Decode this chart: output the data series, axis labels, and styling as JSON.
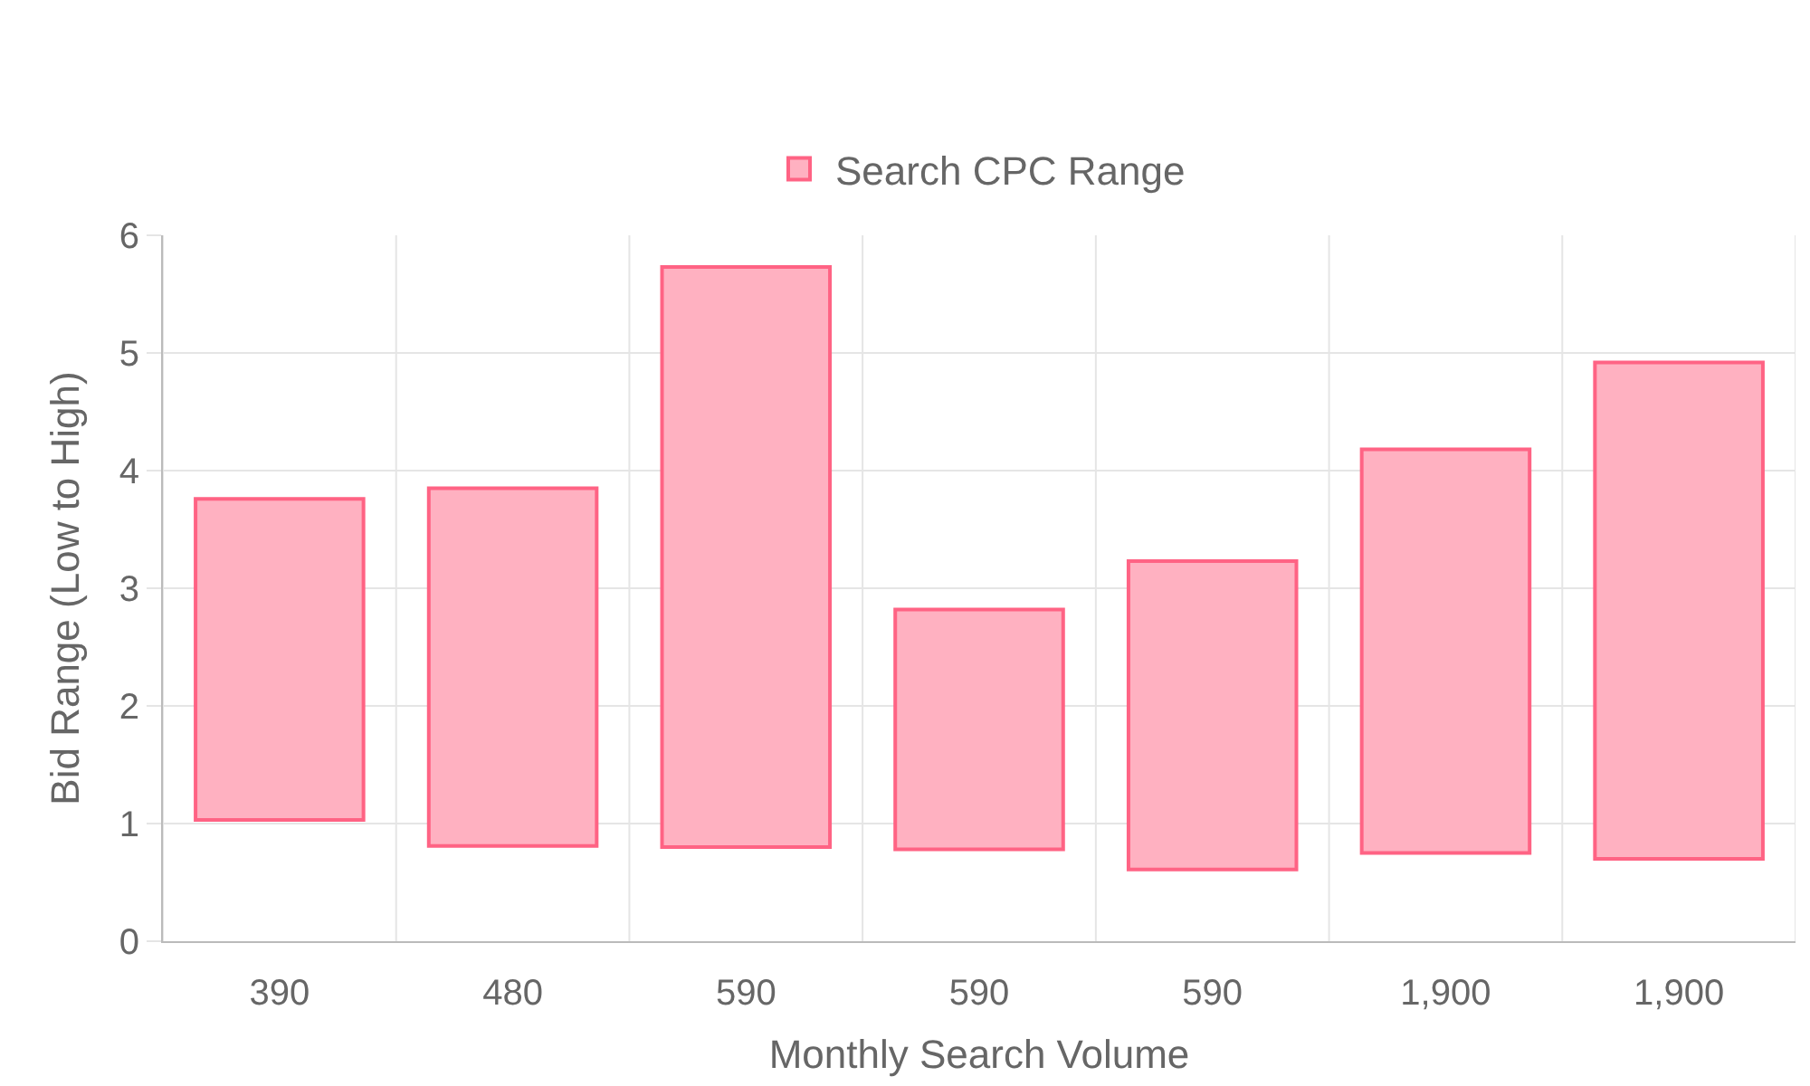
{
  "chart_data": {
    "type": "bar",
    "xlabel": "Monthly Search Volume",
    "ylabel": "Bid Range (Low to High)",
    "categories": [
      "390",
      "480",
      "590",
      "590",
      "590",
      "1,900",
      "1,900"
    ],
    "series": [
      {
        "name": "Search CPC Range",
        "color": "#ffb1c1",
        "values": [
          2.73,
          3.04,
          4.93,
          2.04,
          2.62,
          3.43,
          4.22
        ],
        "base": [
          1.03,
          0.81,
          0.8,
          0.78,
          0.61,
          0.75,
          0.7
        ]
      }
    ],
    "ylim": [
      0,
      6
    ],
    "yticks": [
      0,
      1,
      2,
      3,
      4,
      5,
      6
    ],
    "grid": true,
    "legend": "top"
  }
}
